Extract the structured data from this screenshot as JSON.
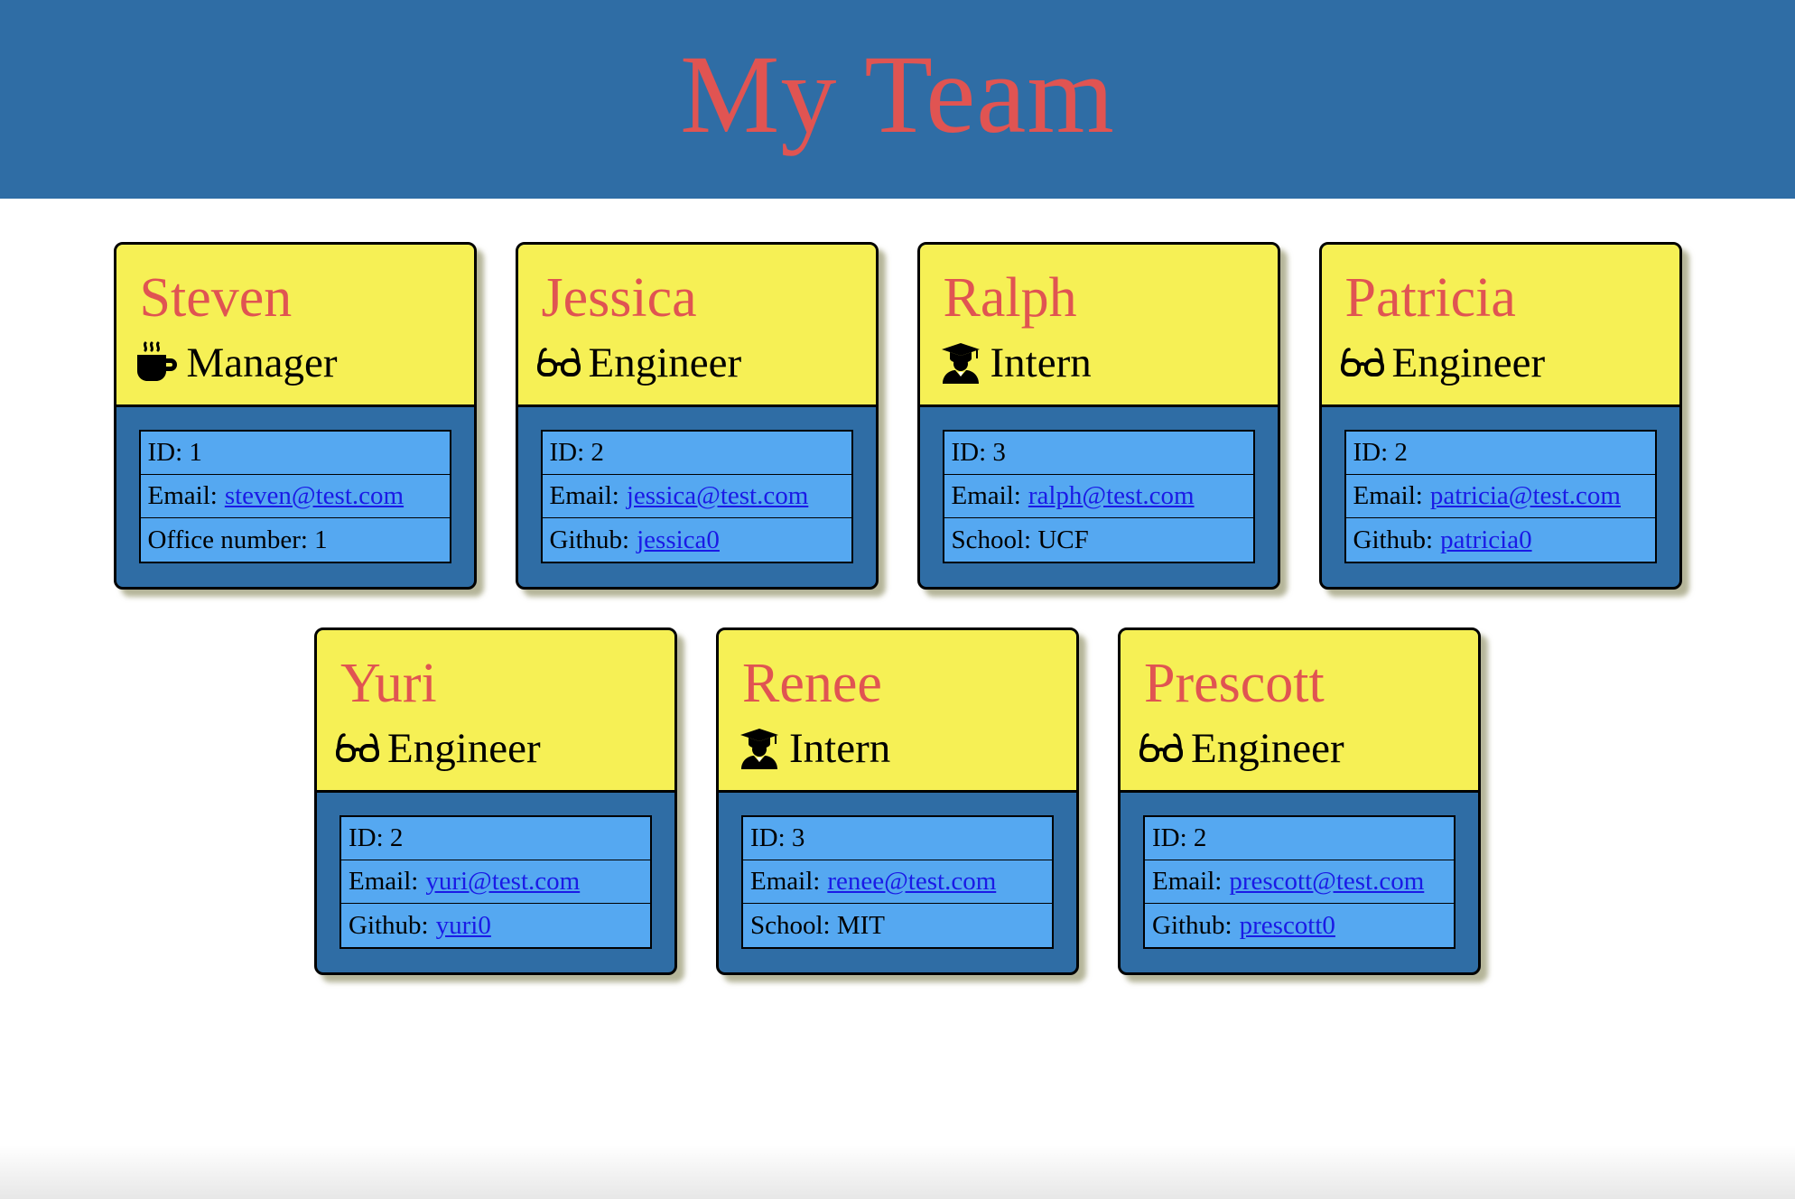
{
  "header": {
    "title": "My Team"
  },
  "colors": {
    "header_bg": "#2f6da5",
    "title": "#e05452",
    "card_head_bg": "#f6f055",
    "card_body_bg": "#2f6da5",
    "info_bg": "#55a8f1",
    "link": "#1a1ae6"
  },
  "team": [
    {
      "name": "Steven",
      "role": "Manager",
      "icon": "mug-hot-icon",
      "id_label": "ID: 1",
      "email_prefix": "Email:",
      "email": "steven@test.com",
      "extra_prefix": "Office number: 1",
      "extra_link": ""
    },
    {
      "name": "Jessica",
      "role": "Engineer",
      "icon": "glasses-icon",
      "id_label": "ID: 2",
      "email_prefix": "Email:",
      "email": "jessica@test.com",
      "extra_prefix": "Github:",
      "extra_link": "jessica0"
    },
    {
      "name": "Ralph",
      "role": "Intern",
      "icon": "graduate-icon",
      "id_label": "ID: 3",
      "email_prefix": "Email:",
      "email": "ralph@test.com",
      "extra_prefix": "School: UCF",
      "extra_link": ""
    },
    {
      "name": "Patricia",
      "role": "Engineer",
      "icon": "glasses-icon",
      "id_label": "ID: 2",
      "email_prefix": "Email:",
      "email": "patricia@test.com",
      "extra_prefix": "Github:",
      "extra_link": "patricia0"
    },
    {
      "name": "Yuri",
      "role": "Engineer",
      "icon": "glasses-icon",
      "id_label": "ID: 2",
      "email_prefix": "Email:",
      "email": "yuri@test.com",
      "extra_prefix": "Github:",
      "extra_link": "yuri0"
    },
    {
      "name": "Renee",
      "role": "Intern",
      "icon": "graduate-icon",
      "id_label": "ID: 3",
      "email_prefix": "Email:",
      "email": "renee@test.com",
      "extra_prefix": "School: MIT",
      "extra_link": ""
    },
    {
      "name": "Prescott",
      "role": "Engineer",
      "icon": "glasses-icon",
      "id_label": "ID: 2",
      "email_prefix": "Email:",
      "email": "prescott@test.com",
      "extra_prefix": "Github:",
      "extra_link": "prescott0"
    }
  ]
}
